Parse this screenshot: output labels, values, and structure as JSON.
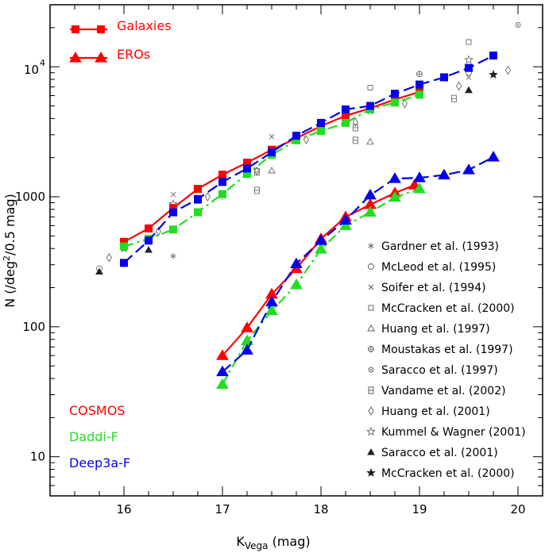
{
  "chart_data": {
    "type": "line",
    "xlabel_main": "K",
    "xlabel_sub": "Vega",
    "xlabel_unit": " (mag)",
    "ylabel_prefix": "N  (/deg",
    "ylabel_sup": "2",
    "ylabel_suffix": "/0.5 mag)",
    "xlim": [
      15.25,
      20.25
    ],
    "ylim": [
      5,
      30000
    ],
    "yscale": "log",
    "x_ticks": [
      16,
      17,
      18,
      19,
      20
    ],
    "x_tick_labels": [
      "16",
      "17",
      "18",
      "19",
      "20"
    ],
    "y_ticks": [
      10,
      100,
      1000,
      10000
    ],
    "y_tick_labels": [
      "10",
      "100",
      "1000",
      "10",
      "4"
    ],
    "colors": {
      "cosmos": "#ff0000",
      "daddi": "#22dd22",
      "deep3a": "#0000ee"
    },
    "key": [
      {
        "label": "Galaxies",
        "marker": "square"
      },
      {
        "label": "EROs",
        "marker": "triangle"
      }
    ],
    "survey_labels": [
      {
        "label": "COSMOS",
        "color": "#ff0000"
      },
      {
        "label": "Daddi-F",
        "color": "#22dd22"
      },
      {
        "label": "Deep3a-F",
        "color": "#0000ee"
      }
    ],
    "series": [
      {
        "name": "COSMOS galaxies",
        "survey": "cosmos",
        "marker": "square",
        "style": "solid",
        "x": [
          16,
          16.25,
          16.5,
          16.75,
          17,
          17.25,
          17.5,
          17.75,
          18,
          18.25,
          18.5,
          18.75,
          19
        ],
        "y": [
          450,
          570,
          820,
          1150,
          1480,
          1830,
          2300,
          2820,
          3500,
          4200,
          4800,
          5600,
          6400
        ]
      },
      {
        "name": "Daddi-F galaxies",
        "survey": "daddi",
        "marker": "square",
        "style": "dashdot",
        "x": [
          16,
          16.25,
          16.5,
          16.75,
          17,
          17.25,
          17.5,
          17.75,
          18,
          18.25,
          18.5,
          18.75,
          19
        ],
        "y": [
          415,
          475,
          560,
          760,
          1050,
          1500,
          2100,
          2720,
          3200,
          3700,
          4700,
          5300,
          6100
        ]
      },
      {
        "name": "Deep3a-F galaxies",
        "survey": "deep3a",
        "marker": "square",
        "style": "dashed",
        "x": [
          16,
          16.25,
          16.5,
          16.75,
          17,
          17.25,
          17.5,
          17.75,
          18,
          18.25,
          18.5,
          18.75,
          19,
          19.25,
          19.5,
          19.75
        ],
        "y": [
          310,
          460,
          760,
          960,
          1300,
          1650,
          2200,
          2950,
          3700,
          4700,
          5000,
          6200,
          7300,
          8300,
          9800,
          12200
        ]
      },
      {
        "name": "COSMOS EROs",
        "survey": "cosmos",
        "marker": "triangle",
        "style": "solid",
        "x": [
          17,
          17.25,
          17.5,
          17.75,
          18,
          18.25,
          18.5,
          18.75,
          18.95
        ],
        "y": [
          60,
          98,
          178,
          280,
          475,
          700,
          870,
          1070,
          1230
        ]
      },
      {
        "name": "Daddi-F EROs",
        "survey": "daddi",
        "marker": "triangle",
        "style": "dashdot",
        "x": [
          17,
          17.25,
          17.5,
          17.75,
          18,
          18.25,
          18.5,
          18.75,
          19
        ],
        "y": [
          36,
          78,
          133,
          210,
          395,
          600,
          760,
          990,
          1150
        ]
      },
      {
        "name": "Deep3a-F EROs",
        "survey": "deep3a",
        "marker": "triangle",
        "style": "dashed",
        "x": [
          17,
          17.25,
          17.5,
          17.75,
          18,
          18.25,
          18.5,
          18.75,
          19,
          19.25,
          19.5,
          19.75
        ],
        "y": [
          45,
          66,
          155,
          305,
          460,
          660,
          1030,
          1380,
          1400,
          1470,
          1610,
          2020
        ]
      }
    ],
    "literature": [
      {
        "label": "Gardner et al. (1993)",
        "marker": "asterisk",
        "points": [
          [
            16,
            410
          ],
          [
            16.5,
            350
          ],
          [
            17,
            1000
          ],
          [
            18.5,
            4650
          ]
        ]
      },
      {
        "label": "McLeod et al. (1995)",
        "marker": "circle",
        "points": [
          [
            15.75,
            280
          ],
          [
            19.5,
            9000
          ]
        ]
      },
      {
        "label": "Soifer et al. (1994)",
        "marker": "cross",
        "points": [
          [
            16.5,
            1040
          ],
          [
            17.5,
            2900
          ],
          [
            18.5,
            4500
          ],
          [
            19.5,
            8300
          ]
        ]
      },
      {
        "label": "McCracken et al. (2000)",
        "marker": "square",
        "points": [
          [
            18.5,
            6900
          ],
          [
            19.5,
            15500
          ]
        ]
      },
      {
        "label": "Huang et al. (1997)",
        "marker": "triangle",
        "points": [
          [
            17.5,
            1590
          ],
          [
            18.5,
            2650
          ],
          [
            19.5,
            6600
          ]
        ]
      },
      {
        "label": "Moustakas et al. (1997)",
        "marker": "circle-dot",
        "points": [
          [
            19,
            8800
          ]
        ]
      },
      {
        "label": "Saracco et al. (1997)",
        "marker": "circle-small",
        "points": [
          [
            20,
            21000
          ]
        ]
      },
      {
        "label": "Vandame et al. (2002)",
        "marker": "square-notch",
        "points": [
          [
            17.35,
            1120
          ],
          [
            17.35,
            1550
          ],
          [
            18.35,
            2720
          ],
          [
            18.35,
            3400
          ],
          [
            19.35,
            5700
          ]
        ]
      },
      {
        "label": "Huang et al. (2001)",
        "marker": "diamond",
        "points": [
          [
            15.85,
            340
          ],
          [
            16.35,
            540
          ],
          [
            16.85,
            1000
          ],
          [
            17.35,
            1580
          ],
          [
            17.85,
            2750
          ],
          [
            18.35,
            3750
          ],
          [
            18.85,
            5200
          ],
          [
            19.4,
            7100
          ],
          [
            19.9,
            9400
          ]
        ]
      },
      {
        "label": "Kummel & Wagner (2001)",
        "marker": "star-open",
        "points": [
          [
            16,
            400
          ],
          [
            16.5,
            880
          ],
          [
            19.5,
            11300
          ]
        ]
      },
      {
        "label": "Saracco et al. (2001)",
        "marker": "triangle-filled",
        "points": [
          [
            15.75,
            265
          ],
          [
            16.25,
            390
          ],
          [
            16.75,
            930
          ],
          [
            19.5,
            6600
          ]
        ]
      },
      {
        "label": "McCracken et al. (2000)",
        "marker": "star-filled",
        "points": [
          [
            19.75,
            8700
          ]
        ]
      }
    ]
  }
}
